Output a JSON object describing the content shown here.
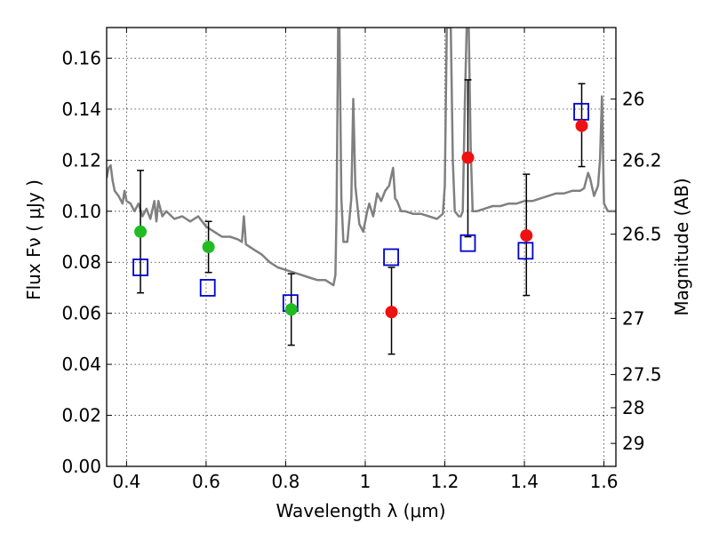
{
  "chart_data": {
    "type": "scatter",
    "xlabel": "Wavelength  λ (μm)",
    "ylabel": "Flux  Fν  ( μJy )",
    "ylabel_right": "Magnitude (AB)",
    "xlim": [
      0.35,
      1.63
    ],
    "ylim": [
      0.0,
      0.172
    ],
    "grid": true,
    "x_ticks": [
      0.4,
      0.6,
      0.8,
      1.0,
      1.2,
      1.4,
      1.6
    ],
    "x_tick_labels": [
      "0.4",
      "0.6",
      "0.8",
      "1",
      "1.2",
      "1.4",
      "1.6"
    ],
    "y_ticks": [
      0.0,
      0.02,
      0.04,
      0.06,
      0.08,
      0.1,
      0.12,
      0.14,
      0.16
    ],
    "y_tick_labels": [
      "0.00",
      "0.02",
      "0.04",
      "0.06",
      "0.08",
      "0.10",
      "0.12",
      "0.14",
      "0.16"
    ],
    "right_ticks": [
      {
        "label": "26",
        "flux": 0.144
      },
      {
        "label": "26.2",
        "flux": 0.12
      },
      {
        "label": "26.5",
        "flux": 0.091
      },
      {
        "label": "27",
        "flux": 0.058
      },
      {
        "label": "27.5",
        "flux": 0.036
      },
      {
        "label": "28",
        "flux": 0.023
      },
      {
        "label": "29",
        "flux": 0.009
      }
    ],
    "observed_green": [
      {
        "x": 0.435,
        "y": 0.092,
        "err_lo": 0.068,
        "err_hi": 0.116
      },
      {
        "x": 0.606,
        "y": 0.086,
        "err_lo": 0.076,
        "err_hi": 0.096
      },
      {
        "x": 0.814,
        "y": 0.0615,
        "err_lo": 0.0475,
        "err_hi": 0.0755
      }
    ],
    "observed_red": [
      {
        "x": 1.066,
        "y": 0.0605,
        "err_lo": 0.044,
        "err_hi": 0.078
      },
      {
        "x": 1.258,
        "y": 0.121,
        "err_lo": 0.09,
        "err_hi": 0.1515
      },
      {
        "x": 1.405,
        "y": 0.0905,
        "err_lo": 0.067,
        "err_hi": 0.1145
      },
      {
        "x": 1.544,
        "y": 0.1335,
        "err_lo": 0.1175,
        "err_hi": 0.15
      }
    ],
    "model_squares": [
      {
        "x": 0.435,
        "y": 0.078
      },
      {
        "x": 0.604,
        "y": 0.07
      },
      {
        "x": 0.812,
        "y": 0.064
      },
      {
        "x": 1.065,
        "y": 0.082
      },
      {
        "x": 1.258,
        "y": 0.0875
      },
      {
        "x": 1.403,
        "y": 0.0845
      },
      {
        "x": 1.543,
        "y": 0.139
      }
    ],
    "spectrum": [
      [
        0.35,
        0.113
      ],
      [
        0.355,
        0.117
      ],
      [
        0.36,
        0.118
      ],
      [
        0.365,
        0.112
      ],
      [
        0.37,
        0.108
      ],
      [
        0.38,
        0.106
      ],
      [
        0.39,
        0.103
      ],
      [
        0.395,
        0.108
      ],
      [
        0.4,
        0.104
      ],
      [
        0.41,
        0.103
      ],
      [
        0.42,
        0.1
      ],
      [
        0.43,
        0.103
      ],
      [
        0.44,
        0.098
      ],
      [
        0.45,
        0.101
      ],
      [
        0.46,
        0.097
      ],
      [
        0.47,
        0.104
      ],
      [
        0.475,
        0.096
      ],
      [
        0.48,
        0.104
      ],
      [
        0.49,
        0.098
      ],
      [
        0.5,
        0.1
      ],
      [
        0.52,
        0.097
      ],
      [
        0.54,
        0.098
      ],
      [
        0.56,
        0.096
      ],
      [
        0.58,
        0.098
      ],
      [
        0.6,
        0.094
      ],
      [
        0.62,
        0.092
      ],
      [
        0.64,
        0.09
      ],
      [
        0.66,
        0.09
      ],
      [
        0.68,
        0.089
      ],
      [
        0.69,
        0.088
      ],
      [
        0.695,
        0.098
      ],
      [
        0.7,
        0.087
      ],
      [
        0.72,
        0.085
      ],
      [
        0.74,
        0.083
      ],
      [
        0.76,
        0.08
      ],
      [
        0.78,
        0.078
      ],
      [
        0.8,
        0.077
      ],
      [
        0.82,
        0.076
      ],
      [
        0.84,
        0.075
      ],
      [
        0.86,
        0.074
      ],
      [
        0.88,
        0.073
      ],
      [
        0.9,
        0.073
      ],
      [
        0.91,
        0.072
      ],
      [
        0.92,
        0.071
      ],
      [
        0.925,
        0.075
      ],
      [
        0.928,
        0.1
      ],
      [
        0.932,
        0.172
      ],
      [
        0.935,
        0.172
      ],
      [
        0.94,
        0.105
      ],
      [
        0.945,
        0.088
      ],
      [
        0.955,
        0.088
      ],
      [
        0.965,
        0.105
      ],
      [
        0.97,
        0.144
      ],
      [
        0.975,
        0.11
      ],
      [
        0.985,
        0.095
      ],
      [
        0.995,
        0.092
      ],
      [
        1.005,
        0.1
      ],
      [
        1.01,
        0.103
      ],
      [
        1.02,
        0.098
      ],
      [
        1.03,
        0.107
      ],
      [
        1.04,
        0.104
      ],
      [
        1.05,
        0.108
      ],
      [
        1.06,
        0.11
      ],
      [
        1.07,
        0.117
      ],
      [
        1.075,
        0.105
      ],
      [
        1.08,
        0.104
      ],
      [
        1.09,
        0.1
      ],
      [
        1.1,
        0.1
      ],
      [
        1.12,
        0.099
      ],
      [
        1.14,
        0.099
      ],
      [
        1.16,
        0.098
      ],
      [
        1.18,
        0.097
      ],
      [
        1.195,
        0.099
      ],
      [
        1.2,
        0.11
      ],
      [
        1.205,
        0.172
      ],
      [
        1.215,
        0.172
      ],
      [
        1.22,
        0.12
      ],
      [
        1.225,
        0.1
      ],
      [
        1.235,
        0.098
      ],
      [
        1.24,
        0.098
      ],
      [
        1.245,
        0.1
      ],
      [
        1.25,
        0.14
      ],
      [
        1.255,
        0.172
      ],
      [
        1.26,
        0.172
      ],
      [
        1.265,
        0.125
      ],
      [
        1.27,
        0.1
      ],
      [
        1.28,
        0.1
      ],
      [
        1.3,
        0.101
      ],
      [
        1.32,
        0.102
      ],
      [
        1.34,
        0.102
      ],
      [
        1.36,
        0.103
      ],
      [
        1.38,
        0.103
      ],
      [
        1.4,
        0.104
      ],
      [
        1.42,
        0.104
      ],
      [
        1.44,
        0.105
      ],
      [
        1.46,
        0.106
      ],
      [
        1.48,
        0.107
      ],
      [
        1.5,
        0.107
      ],
      [
        1.52,
        0.108
      ],
      [
        1.54,
        0.108
      ],
      [
        1.55,
        0.109
      ],
      [
        1.56,
        0.115
      ],
      [
        1.565,
        0.113
      ],
      [
        1.575,
        0.106
      ],
      [
        1.585,
        0.11
      ],
      [
        1.59,
        0.12
      ],
      [
        1.595,
        0.145
      ],
      [
        1.6,
        0.103
      ],
      [
        1.61,
        0.1
      ],
      [
        1.63,
        0.1
      ]
    ],
    "colors": {
      "spectrum": "#808080",
      "green": "#22bb22",
      "red": "#ee1111",
      "square": "#0000cc",
      "errorbar": "#000000"
    }
  }
}
